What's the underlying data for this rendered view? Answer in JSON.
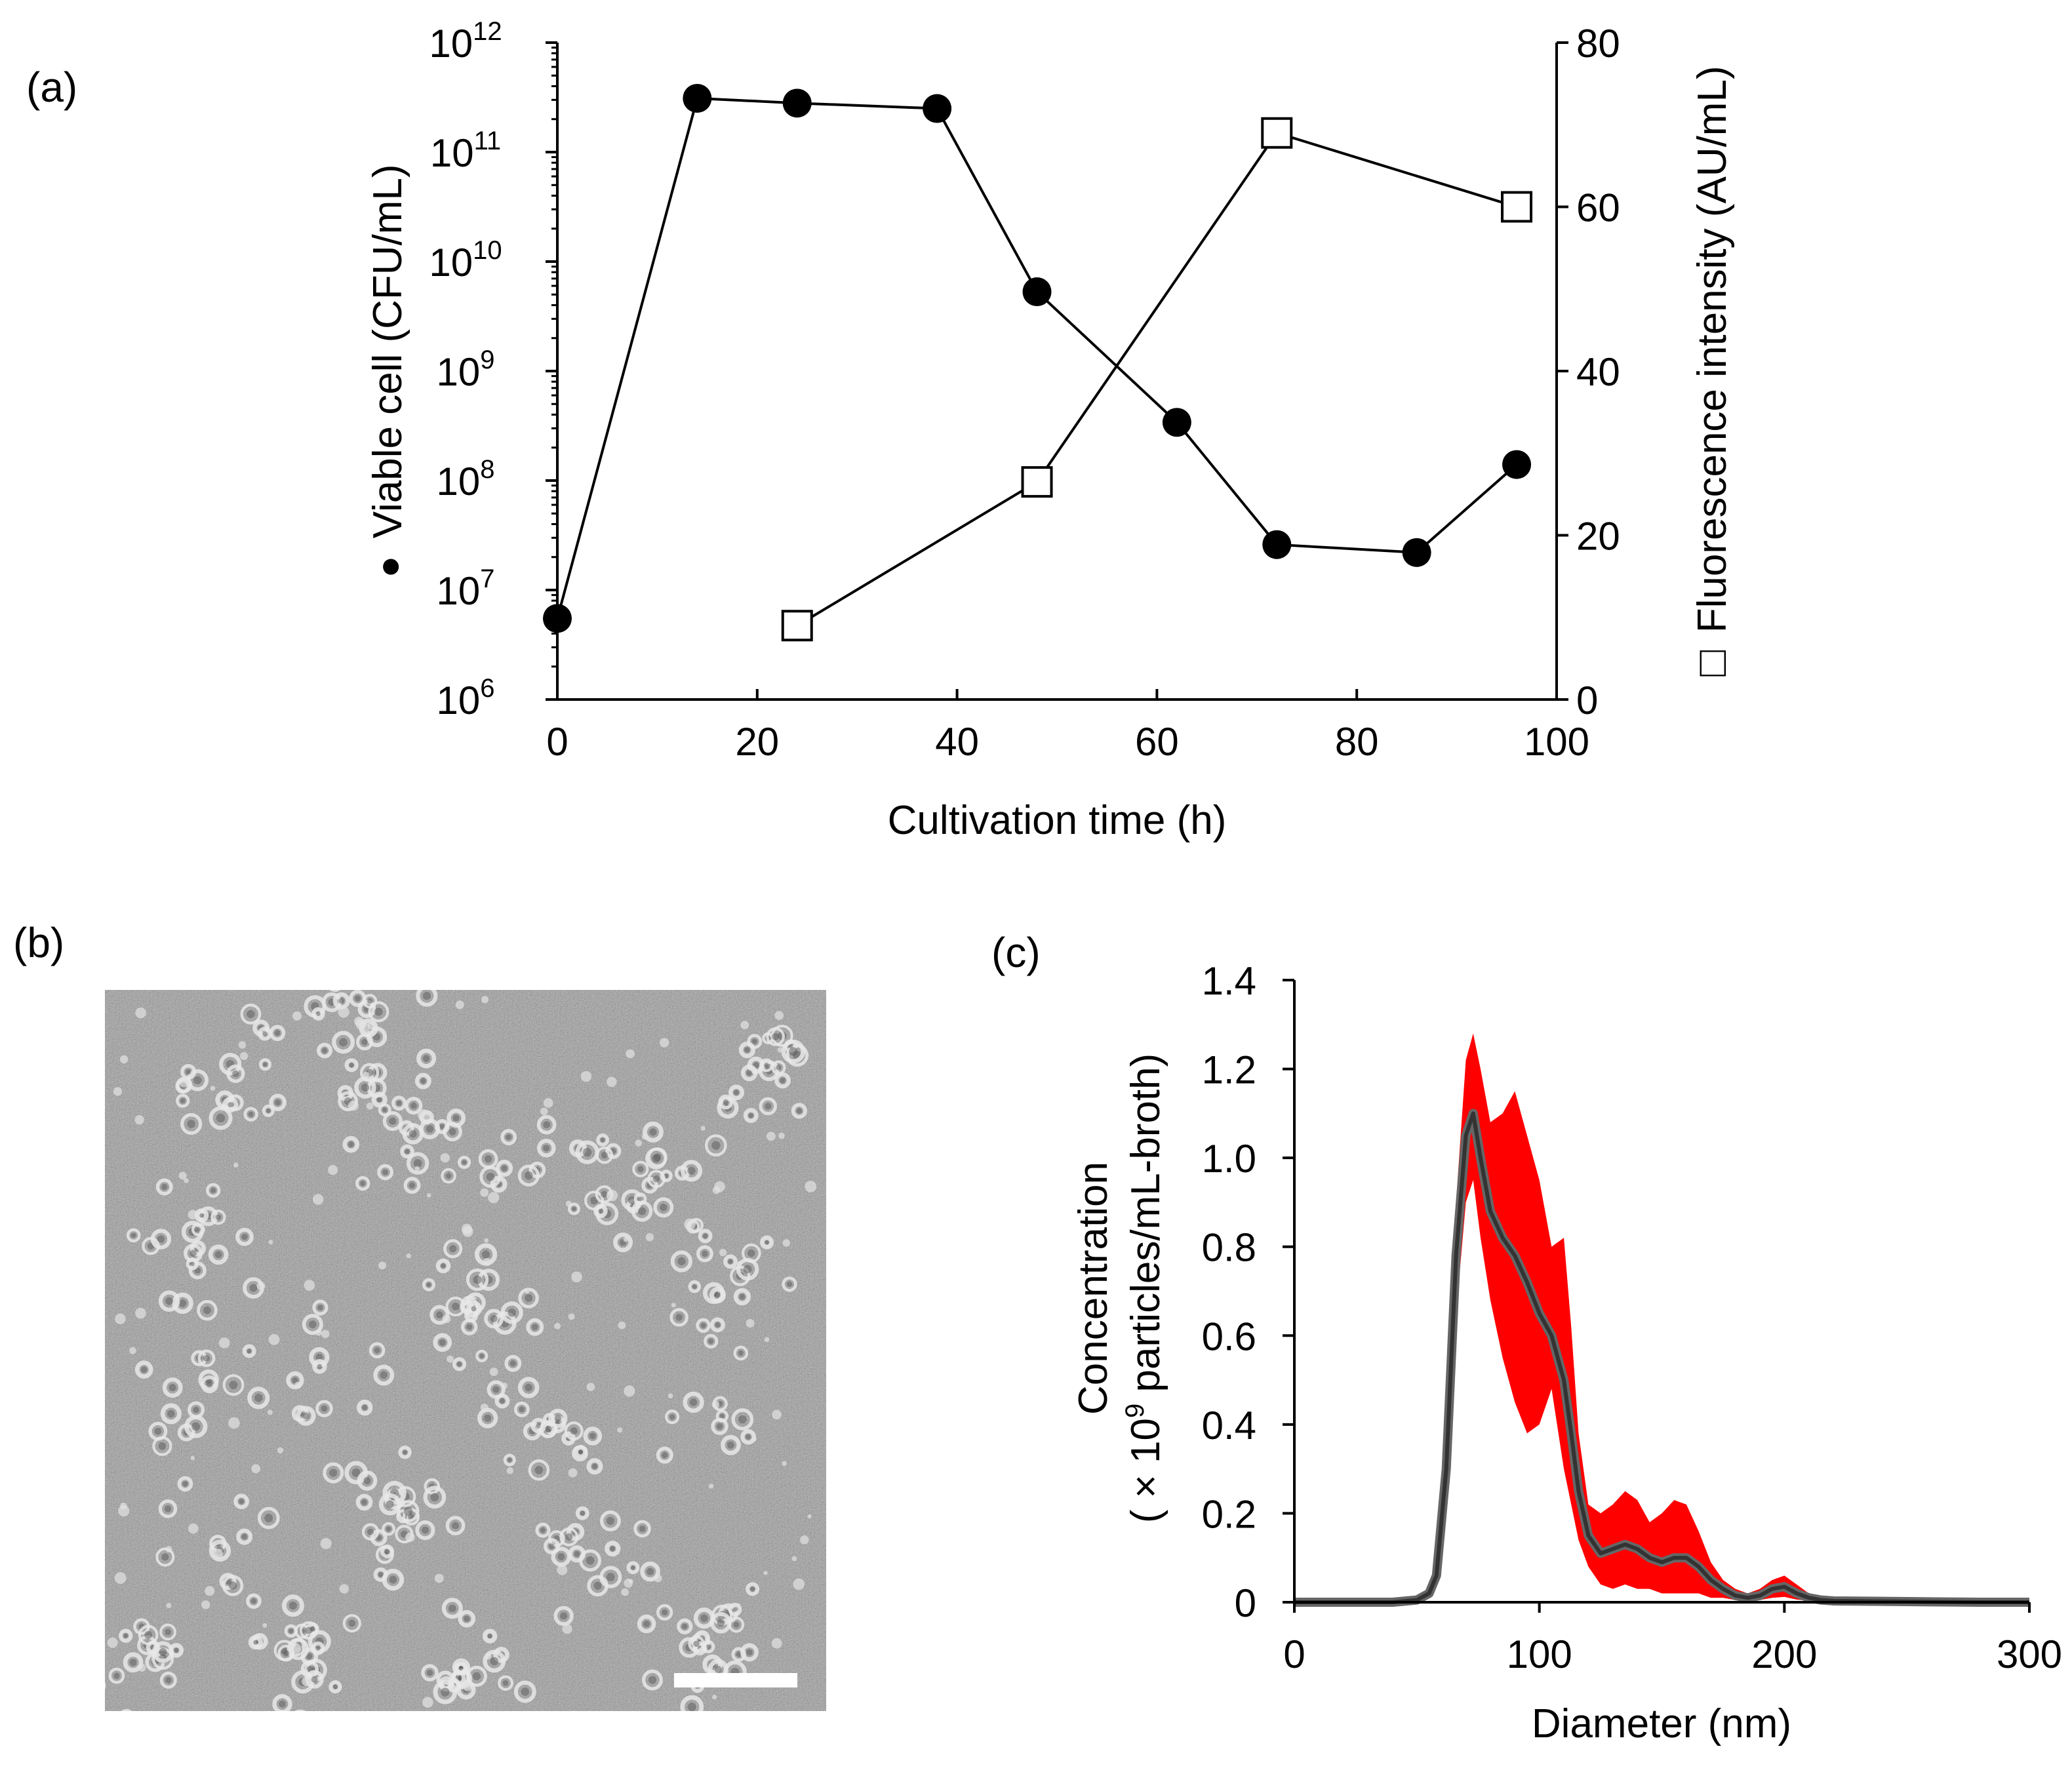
{
  "figure": {
    "panel_a_label": "(a)",
    "panel_b_label": "(b)",
    "panel_c_label": "(c)"
  },
  "chart_data": [
    {
      "id": "a",
      "type": "line",
      "title": "",
      "xlabel": "Cultivation time (h)",
      "ylabel": "Viable cell (CFU/mL)",
      "ylabel_marker": "●",
      "y2label": "Fluorescence intensity (AU/mL)",
      "y2label_marker": "□",
      "xlim": [
        0,
        100
      ],
      "ylim_log10": [
        6,
        12
      ],
      "y2lim": [
        0,
        80
      ],
      "xticks": [
        "0",
        "20",
        "40",
        "60",
        "80",
        "100"
      ],
      "yticks_base": "10",
      "yticks_exp": [
        "6",
        "7",
        "8",
        "9",
        "10",
        "11",
        "12"
      ],
      "y2ticks": [
        "0",
        "20",
        "40",
        "60",
        "80"
      ],
      "series": [
        {
          "name": "Viable cell (CFU/mL)",
          "axis": "left",
          "marker": "filled-circle",
          "color": "#000000",
          "x": [
            0,
            14,
            24,
            38,
            48,
            62,
            72,
            86,
            96
          ],
          "y": [
            5500000.0,
            310000000000.0,
            280000000000.0,
            250000000000.0,
            5300000000.0,
            340000000.0,
            26000000.0,
            22000000.0,
            140000000.0
          ]
        },
        {
          "name": "Fluorescence intensity (AU/mL)",
          "axis": "right",
          "marker": "open-square",
          "color": "#000000",
          "x": [
            24,
            48,
            72,
            96
          ],
          "y": [
            9,
            26.5,
            69,
            60
          ]
        }
      ]
    },
    {
      "id": "c",
      "type": "area",
      "title": "",
      "xlabel": "Diameter (nm)",
      "ylabel_line1": "Concentration",
      "ylabel_line2_prefix": "( × 10",
      "ylabel_line2_exp": "9",
      "ylabel_line2_suffix": " particles/mL-broth)",
      "xlim": [
        0,
        300
      ],
      "ylim": [
        0,
        1.4
      ],
      "xticks": [
        "0",
        "100",
        "200",
        "300"
      ],
      "yticks": [
        "0",
        "0.2",
        "0.4",
        "0.6",
        "0.8",
        "1.0",
        "1.2",
        "1.4"
      ],
      "band_color": "#ff0000",
      "mean_color": "#333333",
      "series": [
        {
          "name": "mean",
          "x": [
            0,
            40,
            50,
            55,
            58,
            62,
            66,
            70,
            73,
            76,
            80,
            85,
            90,
            95,
            100,
            105,
            110,
            113,
            116,
            120,
            125,
            130,
            135,
            140,
            145,
            150,
            155,
            160,
            165,
            170,
            175,
            180,
            185,
            190,
            195,
            200,
            205,
            210,
            215,
            220,
            240,
            260,
            280,
            300
          ],
          "y": [
            0,
            0,
            0.005,
            0.02,
            0.06,
            0.3,
            0.78,
            1.05,
            1.1,
            1.0,
            0.88,
            0.82,
            0.78,
            0.72,
            0.65,
            0.6,
            0.5,
            0.38,
            0.25,
            0.15,
            0.11,
            0.12,
            0.13,
            0.12,
            0.1,
            0.09,
            0.1,
            0.1,
            0.08,
            0.05,
            0.03,
            0.015,
            0.01,
            0.015,
            0.03,
            0.035,
            0.02,
            0.01,
            0.005,
            0.003,
            0.002,
            0.001,
            0,
            0
          ]
        },
        {
          "name": "upper",
          "x": [
            0,
            40,
            50,
            55,
            58,
            62,
            66,
            70,
            73,
            76,
            80,
            85,
            90,
            95,
            100,
            105,
            110,
            113,
            116,
            120,
            125,
            130,
            135,
            140,
            145,
            150,
            155,
            160,
            165,
            170,
            175,
            180,
            185,
            190,
            195,
            200,
            205,
            210,
            215,
            220,
            240,
            260,
            280,
            300
          ],
          "y": [
            0,
            0,
            0.01,
            0.03,
            0.08,
            0.35,
            0.9,
            1.22,
            1.28,
            1.2,
            1.08,
            1.1,
            1.15,
            1.05,
            0.95,
            0.8,
            0.82,
            0.62,
            0.38,
            0.22,
            0.2,
            0.22,
            0.25,
            0.23,
            0.18,
            0.2,
            0.23,
            0.22,
            0.16,
            0.09,
            0.05,
            0.03,
            0.02,
            0.03,
            0.05,
            0.06,
            0.04,
            0.02,
            0.01,
            0.005,
            0.003,
            0.002,
            0,
            0
          ]
        },
        {
          "name": "lower",
          "x": [
            0,
            40,
            50,
            55,
            58,
            62,
            66,
            70,
            73,
            76,
            80,
            85,
            90,
            95,
            100,
            105,
            110,
            113,
            116,
            120,
            125,
            130,
            135,
            140,
            145,
            150,
            155,
            160,
            165,
            170,
            175,
            180,
            185,
            190,
            195,
            200,
            205,
            210,
            215,
            220,
            240,
            260,
            280,
            300
          ],
          "y": [
            0,
            0,
            0.002,
            0.01,
            0.04,
            0.25,
            0.65,
            0.9,
            0.95,
            0.82,
            0.68,
            0.55,
            0.45,
            0.38,
            0.4,
            0.48,
            0.3,
            0.22,
            0.14,
            0.08,
            0.04,
            0.03,
            0.04,
            0.03,
            0.03,
            0.02,
            0.02,
            0.02,
            0.02,
            0.01,
            0.01,
            0.005,
            0.003,
            0.005,
            0.01,
            0.012,
            0.006,
            0.003,
            0.002,
            0.001,
            0.001,
            0,
            0,
            0
          ]
        }
      ]
    }
  ]
}
